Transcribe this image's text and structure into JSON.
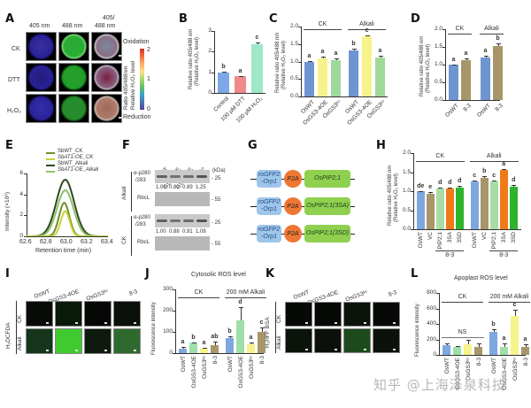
{
  "watermark": "知乎 @上海泽泉科技",
  "panels": {
    "A": {
      "letter": "A",
      "col_headers": [
        "405 nm",
        "488 nm",
        "405/\n488 nm"
      ],
      "col_header_ratio_line1": "405/",
      "col_header_ratio_line2": "488 nm",
      "row_labels": [
        "CK",
        "DTT",
        "H₂O₂"
      ],
      "colorbar": {
        "top_label": "Oxidation",
        "bottom_label": "Reduction",
        "ticks": [
          "2",
          "1",
          "0"
        ],
        "axis_label_line1": "Ratio 405/488nm",
        "axis_label_line2": "Relative H₂O₂ level"
      }
    },
    "B": {
      "letter": "B"
    },
    "C": {
      "letter": "C"
    },
    "D": {
      "letter": "D"
    },
    "E": {
      "letter": "E"
    },
    "F": {
      "letter": "F",
      "lanes": [
        "OsWT",
        "GS3-1OE",
        "GS3-4OE",
        "GS3ᵏᵒ"
      ],
      "kda_label": "(kDa)",
      "sections": [
        {
          "group": "Alkali",
          "probe": "α-p280\n/283",
          "probe_l1": "α-p280",
          "probe_l2": "/283",
          "ratios": [
            "1.00",
            "0.81",
            "0.89",
            "1.25"
          ],
          "loading": "RbcL",
          "mw_top": "25",
          "mw_bottom": "55"
        },
        {
          "group": "CK",
          "probe": "α-p280\n/283",
          "probe_l1": "α-p280",
          "probe_l2": "/283",
          "ratios": [
            "1.00",
            "0.88",
            "0.91",
            "1.08"
          ],
          "loading": "RbcL",
          "mw_top": "25",
          "mw_bottom": "55"
        }
      ]
    },
    "G": {
      "letter": "G",
      "constructs": [
        {
          "sensor_l1": "roGFP2",
          "sensor_l2": "-Orp1",
          "linker": "P2A",
          "gene": "OsPIP2;1"
        },
        {
          "sensor_l1": "roGFP2",
          "sensor_l2": "-Orp1",
          "linker": "P2A",
          "gene": "OsPIP2;1(3SA)"
        },
        {
          "sensor_l1": "roGFP2",
          "sensor_l2": "-Orp1",
          "linker": "P2A",
          "gene": "OsPIP2;1(3SD)"
        }
      ]
    },
    "H": {
      "letter": "H"
    },
    "I": {
      "letter": "I",
      "col_headers": [
        "OsWT",
        "OsGS3-4OE",
        "OsGS3ᵏᵒ",
        "8-3"
      ],
      "row_labels": [
        "CK",
        "Alkali"
      ],
      "stain": "H₂DCFDA"
    },
    "J": {
      "letter": "J"
    },
    "K": {
      "letter": "K",
      "col_headers": [
        "OsWT",
        "OsGS3-4OE",
        "OsGS3ᵏᵒ",
        "8-3"
      ],
      "row_labels": [
        "CK",
        "Alkali"
      ],
      "stain": "H₂HFF BSA"
    },
    "L": {
      "letter": "L"
    }
  },
  "chart_data": [
    {
      "panel": "B",
      "type": "bar",
      "categories": [
        "Control",
        "100 μM DTT",
        "100 μM H₂O₂"
      ],
      "values": [
        1.0,
        0.8,
        2.35
      ],
      "errors": [
        0.02,
        0.03,
        0.1
      ],
      "significance": [
        "b",
        "a",
        "c"
      ],
      "colors": [
        "#7ea7e8",
        "#f08a8a",
        "#9ee8c8"
      ],
      "ylabel": "Relative ratio 405/488 nm (Relative H₂O₂ level)",
      "ylabel_l1": "Relative ratio 405/488 nm",
      "ylabel_l2": "(Relative H₂O₂ level)",
      "ylim": [
        0,
        3
      ],
      "yticks": [
        "0",
        "1",
        "2",
        "3"
      ]
    },
    {
      "panel": "C",
      "type": "bar",
      "groups": [
        "CK",
        "Alkali"
      ],
      "categories": [
        "OsWT",
        "OsGS3-4OE",
        "OsGS3ᵏᵒ",
        "OsWT",
        "OsGS3-4OE",
        "OsGS3ᵏᵒ"
      ],
      "values": [
        1.0,
        1.1,
        1.05,
        1.32,
        1.72,
        1.12
      ],
      "errors": [
        0.02,
        0.04,
        0.03,
        0.04,
        0.03,
        0.04
      ],
      "significance": [
        "a",
        "a",
        "a",
        "b",
        "c",
        "a"
      ],
      "colors": [
        "#6f95d1",
        "#f6f38a",
        "#9fd99a",
        "#6f95d1",
        "#f6f38a",
        "#9fd99a"
      ],
      "ylabel_l1": "Relative ratio 405/488 nm",
      "ylabel_l2": "(Relative H₂O₂ level)",
      "ylim": [
        0,
        2.0
      ],
      "yticks": [
        "0.0",
        "0.5",
        "1.0",
        "1.5",
        "2.0"
      ]
    },
    {
      "panel": "D",
      "type": "bar",
      "groups": [
        "CK",
        "Alkali"
      ],
      "categories": [
        "OsWT",
        "8-3",
        "OsWT",
        "8-3"
      ],
      "values": [
        1.0,
        1.12,
        1.2,
        1.52
      ],
      "errors": [
        0.01,
        0.05,
        0.05,
        0.07
      ],
      "significance": [
        "a",
        "a",
        "a",
        "b"
      ],
      "colors": [
        "#6f95d1",
        "#a8966a",
        "#6f95d1",
        "#a8966a"
      ],
      "ylabel_l1": "Relative ratio 405/488 nm",
      "ylabel_l2": "(Relative H₂O₂ level)",
      "ylim": [
        0,
        2.0
      ],
      "yticks": [
        "0.0",
        "0.5",
        "1.0",
        "1.5",
        "2.0"
      ]
    },
    {
      "panel": "E",
      "type": "line",
      "title": "",
      "xlabel": "Retention time (min)",
      "ylabel": "Intensity (×10⁶)",
      "xlim": [
        62.6,
        63.4
      ],
      "ylim": [
        0,
        6
      ],
      "xticks": [
        "62.6",
        "62.8",
        "63.0",
        "63.2",
        "63.4"
      ],
      "yticks": [
        "0",
        "2",
        "4",
        "6"
      ],
      "legend_position": "top",
      "series": [
        {
          "name": "SbWT_CK",
          "color": "#6b8f2a",
          "peak_x": 62.97,
          "peak_y": 3.2,
          "width": 0.08
        },
        {
          "name": "SbAT1-OE_CK",
          "color": "#c8d23a",
          "peak_x": 62.98,
          "peak_y": 2.4,
          "width": 0.07
        },
        {
          "name": "SbWT_Alkali",
          "color": "#2e4a1e",
          "peak_x": 62.98,
          "peak_y": 5.4,
          "width": 0.14
        },
        {
          "name": "SbAT1-OE_Alkali",
          "color": "#8fbf6a",
          "peak_x": 62.98,
          "peak_y": 4.4,
          "width": 0.13
        }
      ]
    },
    {
      "panel": "H",
      "type": "bar",
      "groups": [
        "CK",
        "Alkali"
      ],
      "subgroup_label": "8-3",
      "categories": [
        "OsWT",
        "VC",
        "PIP2;1",
        "3SA",
        "3SD",
        "OsWT",
        "VC",
        "PIP2;1",
        "3SA",
        "3SD"
      ],
      "values": [
        1.0,
        0.94,
        1.08,
        1.08,
        1.09,
        1.25,
        1.36,
        1.25,
        1.56,
        1.12
      ],
      "errors": [
        0.01,
        0.03,
        0.02,
        0.02,
        0.04,
        0.02,
        0.03,
        0.02,
        0.02,
        0.05
      ],
      "significance": [
        "de",
        "e",
        "d",
        "d",
        "d",
        "c",
        "b",
        "c",
        "a",
        "d"
      ],
      "colors": [
        "#7ea7e0",
        "#a8966a",
        "#a9dca4",
        "#f07a1a",
        "#2cb52c",
        "#7ea7e0",
        "#a8966a",
        "#a9dca4",
        "#f07a1a",
        "#2cb52c"
      ],
      "ylabel_l1": "Relative ratio 405/488 nm",
      "ylabel_l2": "(Relative H₂O₂ level)",
      "ylim": [
        0,
        2.0
      ],
      "yticks": [
        "0.0",
        "0.5",
        "1.0",
        "1.5",
        "2.0"
      ]
    },
    {
      "panel": "J",
      "type": "bar",
      "title": "Cytosolic ROS level",
      "groups": [
        "CK",
        "200 mM Alkali"
      ],
      "categories": [
        "OsWT",
        "OsGS3-4OE",
        "OsGS3ᵏᵒ",
        "8-3",
        "OsWT",
        "OsGS3-4OE",
        "OsGS3ᵏᵒ",
        "8-3"
      ],
      "values": [
        20,
        48,
        20,
        38,
        70,
        155,
        40,
        98
      ],
      "errors": [
        8,
        3,
        5,
        15,
        10,
        60,
        10,
        22
      ],
      "significance": [
        "a",
        "b",
        "a",
        "ab",
        "b",
        "d",
        "a",
        "c"
      ],
      "colors": [
        "#7ea7e0",
        "#9ee0a8",
        "#f6f38a",
        "#a8966a",
        "#7ea7e0",
        "#9ee0a8",
        "#f6f38a",
        "#a8966a"
      ],
      "ylabel": "Fluorescence intensity",
      "ylim": [
        0,
        300
      ],
      "yticks": [
        "0",
        "100",
        "200",
        "300"
      ]
    },
    {
      "panel": "L",
      "type": "bar",
      "title": "Apoplast ROS level",
      "groups": [
        "CK",
        "200 mM Alkali"
      ],
      "annotation": "NS",
      "categories": [
        "OsWT",
        "OsGS3-4OE",
        "OsGS3ᵏᵒ",
        "8-3",
        "OsWT",
        "OsGS3-4OE",
        "OsGS3ᵏᵒ",
        "8-3"
      ],
      "values": [
        125,
        100,
        135,
        105,
        295,
        105,
        505,
        105
      ],
      "errors": [
        20,
        20,
        55,
        40,
        35,
        45,
        80,
        30
      ],
      "significance": [
        "",
        "",
        "",
        "",
        "b",
        "a",
        "c",
        "a"
      ],
      "colors": [
        "#7ea7e0",
        "#9ee0a8",
        "#f6f38a",
        "#a8966a",
        "#7ea7e0",
        "#9ee0a8",
        "#f6f38a",
        "#a8966a"
      ],
      "ylabel": "Fluorescence intensity",
      "ylim": [
        0,
        800
      ],
      "yticks": [
        "0",
        "200",
        "400",
        "600",
        "800"
      ]
    }
  ]
}
